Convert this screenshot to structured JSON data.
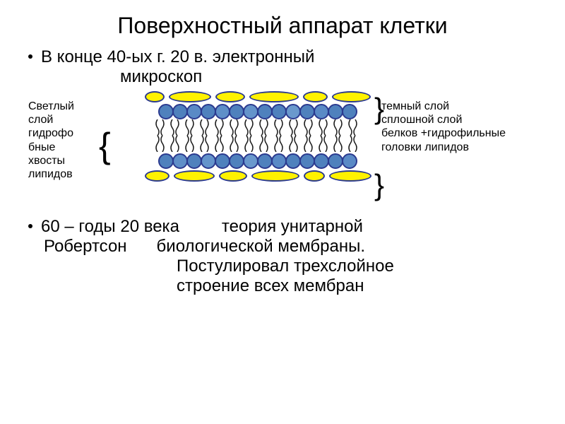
{
  "title": "Поверхностный аппарат клетки",
  "bullet1_line1": "В конце 40-ых г. 20 в. электронный",
  "bullet1_line2": "микроскоп",
  "left_label": "Светлый слой гидрофо бные хвосты липидов",
  "right_label_l1": "темный слой",
  "right_label_l2": "сплошной слой",
  "right_label_l3": " белков +гидрофильные",
  "right_label_l4": "головки липидов",
  "bullet2_l1a": "60 – годы 20 века",
  "bullet2_l1b": "теория унитарной",
  "bullet2_l2a": "Робертсон",
  "bullet2_l2b": "биологической мембраны.",
  "bullet2_l3": "Постулировал трехслойное",
  "bullet2_l4": "строение всех мембран",
  "colors": {
    "protein_fill": "#fff200",
    "head_fill_top": "#4f81bd",
    "head_fill_var": [
      "#4f81bd",
      "#4f81bd",
      "#5a8ac6",
      "#4f81bd",
      "#5f8fc8",
      "#4f81bd",
      "#6494cb",
      "#4f81bd",
      "#4f81bd",
      "#6a99cd",
      "#4f81bd",
      "#5a8ac6",
      "#4f81bd",
      "#4f81bd"
    ],
    "stroke": "#2b3a8f",
    "tail": "#1a1a1a"
  },
  "membrane": {
    "protein_widths_top": [
      28,
      60,
      42,
      70,
      35,
      55
    ],
    "protein_widths_bot": [
      35,
      58,
      40,
      68,
      30,
      60
    ],
    "head_count": 14,
    "tail_count": 14
  }
}
